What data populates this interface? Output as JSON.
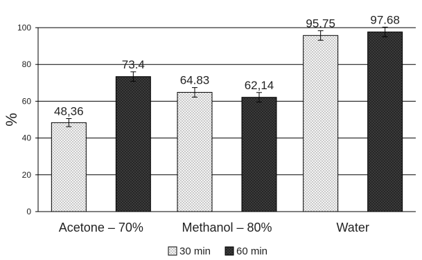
{
  "chart_data": {
    "type": "bar",
    "ylabel": "%",
    "ylim": [
      0,
      100
    ],
    "yticks": [
      0,
      20,
      40,
      60,
      80,
      100
    ],
    "grid": true,
    "legend_position": "bottom-center",
    "categories": [
      "Acetone – 70%",
      "Methanol – 80%",
      "Water"
    ],
    "series": [
      {
        "name": "30 min",
        "values": [
          48.36,
          64.83,
          95.75
        ],
        "value_labels": [
          "48,36",
          "64.83",
          "95.75"
        ],
        "errors": [
          2.2,
          2.6,
          2.6
        ],
        "pattern": "dotted-light"
      },
      {
        "name": "60 min",
        "values": [
          73.4,
          62.14,
          97.68
        ],
        "value_labels": [
          "73.4",
          "62,14",
          "97.68"
        ],
        "errors": [
          2.6,
          2.6,
          2.6
        ],
        "pattern": "dotted-dark"
      }
    ]
  }
}
